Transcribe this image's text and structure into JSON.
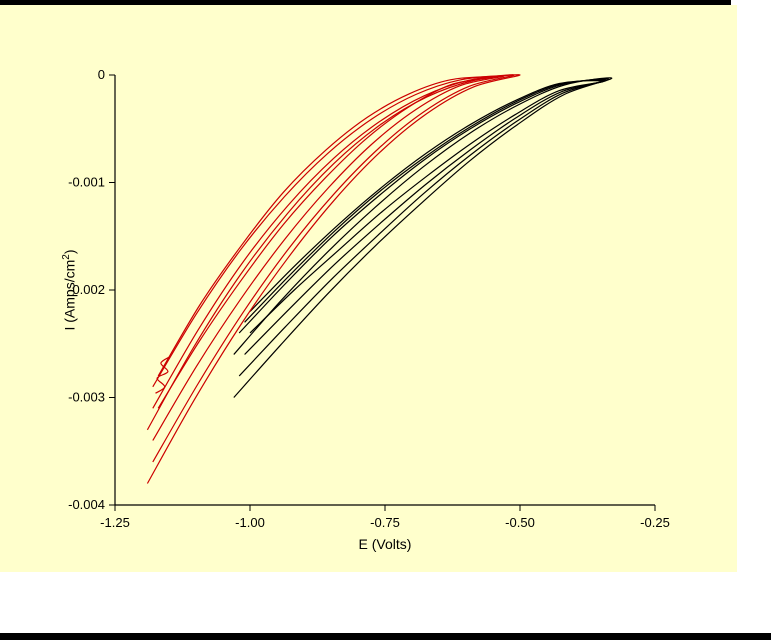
{
  "window": {
    "background_color": "#ffffff",
    "canvas_color": "#ffffcc",
    "bar_color": "#000000"
  },
  "chart_data": {
    "type": "line",
    "title": "",
    "xlabel": "E (Volts)",
    "ylabel": "I (Amps/cm2)",
    "ylabel_parts": {
      "prefix": "I (Amps/cm",
      "sup": "2",
      "suffix": ")"
    },
    "xlim": [
      -1.25,
      -0.25
    ],
    "ylim": [
      -0.004,
      0
    ],
    "grid": false,
    "legend": null,
    "xticks": [
      {
        "value": -1.25,
        "label": "-1.25"
      },
      {
        "value": -1.0,
        "label": "-1.00"
      },
      {
        "value": -0.75,
        "label": "-0.75"
      },
      {
        "value": -0.5,
        "label": "-0.50"
      },
      {
        "value": -0.25,
        "label": "-0.25"
      }
    ],
    "yticks": [
      {
        "value": 0,
        "label": "0"
      },
      {
        "value": -0.001,
        "label": "-0.001"
      },
      {
        "value": -0.002,
        "label": "-0.002"
      },
      {
        "value": -0.003,
        "label": "-0.003"
      },
      {
        "value": -0.004,
        "label": "-0.004"
      }
    ],
    "series": [
      {
        "name": "black-loop-1",
        "color": "#000000",
        "fwd": [
          [
            -0.33,
            -3e-05
          ],
          [
            -0.418,
            -0.000181
          ],
          [
            -0.505,
            -0.000462
          ],
          [
            -0.593,
            -0.000798
          ],
          [
            -0.68,
            -0.00118
          ],
          [
            -0.768,
            -0.00159
          ],
          [
            -0.855,
            -0.00203
          ],
          [
            -0.943,
            -0.00251
          ],
          [
            -1.03,
            -0.003
          ]
        ],
        "ret": [
          [
            -0.33,
            -6e-05
          ],
          [
            -0.418,
            -9.33e-05
          ],
          [
            -0.505,
            -0.000283
          ],
          [
            -0.593,
            -0.000541
          ],
          [
            -0.68,
            -0.000858
          ],
          [
            -0.768,
            -0.00123
          ],
          [
            -0.855,
            -0.00164
          ],
          [
            -0.943,
            -0.0021
          ],
          [
            -1.03,
            -0.0026
          ]
        ]
      },
      {
        "name": "black-loop-2",
        "color": "#000000",
        "fwd": [
          [
            -0.335,
            -4e-05
          ],
          [
            -0.421,
            -0.000169
          ],
          [
            -0.506,
            -0.000431
          ],
          [
            -0.592,
            -0.000745
          ],
          [
            -0.678,
            -0.0011
          ],
          [
            -0.763,
            -0.00149
          ],
          [
            -0.849,
            -0.0019
          ],
          [
            -0.934,
            -0.00234
          ],
          [
            -1.02,
            -0.0028
          ]
        ],
        "ret": [
          [
            -0.335,
            -7e-05
          ],
          [
            -0.421,
            -8.62e-05
          ],
          [
            -0.506,
            -0.000261
          ],
          [
            -0.592,
            -0.0005
          ],
          [
            -0.678,
            -0.000792
          ],
          [
            -0.763,
            -0.00113
          ],
          [
            -0.849,
            -0.00151
          ],
          [
            -0.934,
            -0.00194
          ],
          [
            -1.02,
            -0.0024
          ]
        ]
      },
      {
        "name": "black-loop-3",
        "color": "#000000",
        "fwd": [
          [
            -0.34,
            -5e-05
          ],
          [
            -0.424,
            -0.000157
          ],
          [
            -0.508,
            -0.0004
          ],
          [
            -0.591,
            -0.000692
          ],
          [
            -0.675,
            -0.00102
          ],
          [
            -0.759,
            -0.00138
          ],
          [
            -0.843,
            -0.00176
          ],
          [
            -0.926,
            -0.00217
          ],
          [
            -1.01,
            -0.0026
          ]
        ],
        "ret": [
          [
            -0.34,
            -8e-05
          ],
          [
            -0.424,
            -8.26e-05
          ],
          [
            -0.508,
            -0.00025
          ],
          [
            -0.591,
            -0.000479
          ],
          [
            -0.675,
            -0.000759
          ],
          [
            -0.759,
            -0.00108
          ],
          [
            -0.843,
            -0.00145
          ],
          [
            -0.926,
            -0.00186
          ],
          [
            -1.01,
            -0.0023
          ]
        ]
      },
      {
        "name": "black-loop-4",
        "color": "#000000",
        "fwd": [
          [
            -0.345,
            -6e-05
          ],
          [
            -0.427,
            -0.000145
          ],
          [
            -0.509,
            -0.000369
          ],
          [
            -0.591,
            -0.000638
          ],
          [
            -0.673,
            -0.000942
          ],
          [
            -0.755,
            -0.00127
          ],
          [
            -0.836,
            -0.00163
          ],
          [
            -0.918,
            -0.002
          ],
          [
            -1.0,
            -0.0024
          ]
        ],
        "ret": [
          [
            -0.345,
            -9e-05
          ],
          [
            -0.427,
            -7.9e-05
          ],
          [
            -0.509,
            -0.000239
          ],
          [
            -0.591,
            -0.000458
          ],
          [
            -0.673,
            -0.000726
          ],
          [
            -0.755,
            -0.00104
          ],
          [
            -0.836,
            -0.00139
          ],
          [
            -0.918,
            -0.00178
          ],
          [
            -1.0,
            -0.0022
          ]
        ]
      },
      {
        "name": "red-loop-1",
        "color": "#cc0000",
        "fwd": [
          [
            -0.5,
            0
          ],
          [
            -0.586,
            -0.000111
          ],
          [
            -0.673,
            -0.00036
          ],
          [
            -0.759,
            -0.000717
          ],
          [
            -0.845,
            -0.00117
          ],
          [
            -0.931,
            -0.00171
          ],
          [
            -1.018,
            -0.00233
          ],
          [
            -1.104,
            -0.00303
          ],
          [
            -1.19,
            -0.0038
          ]
        ],
        "ret": [
          [
            -0.5,
            -2e-05
          ],
          [
            -0.586,
            -5.15e-05
          ],
          [
            -0.673,
            -0.000206
          ],
          [
            -0.759,
            -0.000464
          ],
          [
            -0.845,
            -0.000825
          ],
          [
            -0.931,
            -0.00129
          ],
          [
            -1.018,
            -0.00186
          ],
          [
            -1.104,
            -0.00253
          ],
          [
            -1.19,
            -0.0033
          ]
        ]
      },
      {
        "name": "red-loop-2",
        "color": "#cc0000",
        "fwd": [
          [
            -0.51,
            0
          ],
          [
            -0.594,
            -0.000105
          ],
          [
            -0.678,
            -0.000341
          ],
          [
            -0.761,
            -0.000679
          ],
          [
            -0.845,
            -0.00111
          ],
          [
            -0.929,
            -0.00162
          ],
          [
            -1.013,
            -0.00221
          ],
          [
            -1.096,
            -0.00287
          ],
          [
            -1.18,
            -0.0036
          ]
        ],
        "ret": [
          [
            -0.51,
            -2e-05
          ],
          [
            -0.594,
            -4.84e-05
          ],
          [
            -0.678,
            -0.000194
          ],
          [
            -0.761,
            -0.000436
          ],
          [
            -0.845,
            -0.000775
          ],
          [
            -0.929,
            -0.00121
          ],
          [
            -1.013,
            -0.00174
          ],
          [
            -1.096,
            -0.00237
          ],
          [
            -1.18,
            -0.0031
          ]
        ]
      },
      {
        "name": "red-loop-3",
        "color": "#cc0000",
        "fwd": [
          [
            -0.53,
            -1e-05
          ],
          [
            -0.611,
            -9.93e-05
          ],
          [
            -0.693,
            -0.000322
          ],
          [
            -0.774,
            -0.000642
          ],
          [
            -0.855,
            -0.00105
          ],
          [
            -0.936,
            -0.00153
          ],
          [
            -1.018,
            -0.00209
          ],
          [
            -1.099,
            -0.00271
          ],
          [
            -1.18,
            -0.0034
          ]
        ],
        "ret": [
          [
            -0.53,
            -3e-05
          ],
          [
            -0.611,
            -4.52e-05
          ],
          [
            -0.693,
            -0.000181
          ],
          [
            -0.774,
            -0.000408
          ],
          [
            -0.855,
            -0.000725
          ],
          [
            -0.936,
            -0.00113
          ],
          [
            -1.018,
            -0.00163
          ],
          [
            -1.099,
            -0.00222
          ],
          [
            -1.18,
            -0.0029
          ]
        ]
      },
      {
        "name": "red-loop-4",
        "color": "#cc0000",
        "fwd": [
          [
            -0.55,
            -2e-05
          ],
          [
            -0.628,
            -9.05e-05
          ],
          [
            -0.705,
            -0.000294
          ],
          [
            -0.783,
            -0.000585
          ],
          [
            -0.86,
            -0.000954
          ],
          [
            -0.938,
            -0.00139
          ],
          [
            -1.015,
            -0.0019
          ],
          [
            -1.093,
            -0.00247
          ],
          [
            -1.17,
            -0.0031
          ]
        ],
        "ret": [
          [
            -0.55,
            -3e-05
          ],
          [
            -0.628,
            -4.37e-05
          ],
          [
            -0.705,
            -0.000175
          ],
          [
            -0.783,
            -0.000394
          ],
          [
            -0.86,
            -0.0007
          ],
          [
            -0.938,
            -0.00109
          ],
          [
            -1.015,
            -0.00158
          ],
          [
            -1.093,
            -0.00214
          ],
          [
            -1.17,
            -0.0028
          ]
        ]
      },
      {
        "name": "red-noise-artifact",
        "color": "#cc0000",
        "points": [
          [
            -1.148,
            -0.00262
          ],
          [
            -1.165,
            -0.00268
          ],
          [
            -1.152,
            -0.00276
          ],
          [
            -1.172,
            -0.00282
          ],
          [
            -1.158,
            -0.0029
          ],
          [
            -1.175,
            -0.00296
          ]
        ]
      }
    ]
  }
}
